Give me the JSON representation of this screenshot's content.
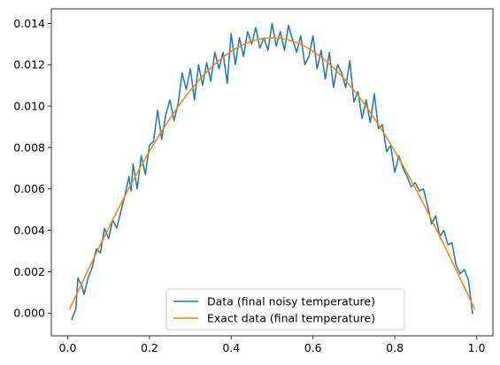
{
  "chart_data": {
    "type": "line",
    "title": "",
    "xlabel": "",
    "ylabel": "",
    "xlim": [
      -0.04,
      1.04
    ],
    "ylim": [
      -0.0011,
      0.0147
    ],
    "grid": false,
    "legend_placement": "lower center",
    "x_ticks": [
      {
        "value": 0.0,
        "label": "0.0"
      },
      {
        "value": 0.2,
        "label": "0.2"
      },
      {
        "value": 0.4,
        "label": "0.4"
      },
      {
        "value": 0.6,
        "label": "0.6"
      },
      {
        "value": 0.8,
        "label": "0.8"
      },
      {
        "value": 1.0,
        "label": "1.0"
      }
    ],
    "y_ticks": [
      {
        "value": 0.0,
        "label": "0.000"
      },
      {
        "value": 0.002,
        "label": "0.002"
      },
      {
        "value": 0.004,
        "label": "0.004"
      },
      {
        "value": 0.006,
        "label": "0.006"
      },
      {
        "value": 0.008,
        "label": "0.008"
      },
      {
        "value": 0.01,
        "label": "0.010"
      },
      {
        "value": 0.012,
        "label": "0.012"
      },
      {
        "value": 0.014,
        "label": "0.014"
      }
    ],
    "series": [
      {
        "name": "Data (final noisy temperature)",
        "color": "#1f77b4",
        "x": [
          0.01,
          0.02,
          0.025,
          0.035,
          0.04,
          0.05,
          0.06,
          0.07,
          0.08,
          0.09,
          0.1,
          0.11,
          0.12,
          0.13,
          0.14,
          0.15,
          0.155,
          0.16,
          0.17,
          0.18,
          0.19,
          0.2,
          0.21,
          0.22,
          0.23,
          0.24,
          0.25,
          0.26,
          0.27,
          0.28,
          0.29,
          0.3,
          0.31,
          0.32,
          0.33,
          0.34,
          0.35,
          0.36,
          0.37,
          0.38,
          0.39,
          0.4,
          0.41,
          0.42,
          0.43,
          0.44,
          0.45,
          0.46,
          0.47,
          0.48,
          0.49,
          0.5,
          0.51,
          0.52,
          0.53,
          0.54,
          0.55,
          0.56,
          0.57,
          0.58,
          0.59,
          0.6,
          0.61,
          0.62,
          0.63,
          0.64,
          0.65,
          0.66,
          0.67,
          0.68,
          0.69,
          0.7,
          0.71,
          0.72,
          0.73,
          0.74,
          0.75,
          0.76,
          0.77,
          0.78,
          0.79,
          0.8,
          0.81,
          0.82,
          0.83,
          0.84,
          0.85,
          0.86,
          0.87,
          0.88,
          0.89,
          0.9,
          0.91,
          0.92,
          0.93,
          0.94,
          0.95,
          0.96,
          0.97,
          0.98,
          0.99
        ],
        "y": [
          -0.0003,
          0.0002,
          0.0017,
          0.0013,
          0.0009,
          0.0017,
          0.0022,
          0.0031,
          0.0029,
          0.0041,
          0.0036,
          0.0045,
          0.0041,
          0.0049,
          0.0057,
          0.0066,
          0.0059,
          0.0072,
          0.006,
          0.0076,
          0.0067,
          0.0081,
          0.0083,
          0.0098,
          0.0084,
          0.0096,
          0.0103,
          0.0093,
          0.0101,
          0.0116,
          0.0108,
          0.0118,
          0.0103,
          0.012,
          0.011,
          0.0121,
          0.0112,
          0.0126,
          0.0118,
          0.0126,
          0.0111,
          0.0135,
          0.012,
          0.0133,
          0.0124,
          0.0136,
          0.013,
          0.0138,
          0.0128,
          0.0133,
          0.0127,
          0.014,
          0.0129,
          0.0136,
          0.0127,
          0.0139,
          0.0132,
          0.0126,
          0.0134,
          0.012,
          0.0124,
          0.0134,
          0.0118,
          0.0127,
          0.0113,
          0.0126,
          0.0109,
          0.012,
          0.0116,
          0.0109,
          0.0122,
          0.0102,
          0.0107,
          0.0094,
          0.0103,
          0.0092,
          0.0106,
          0.0089,
          0.0091,
          0.0078,
          0.0081,
          0.0068,
          0.0076,
          0.007,
          0.0066,
          0.0061,
          0.0063,
          0.0059,
          0.006,
          0.0052,
          0.0043,
          0.0047,
          0.0037,
          0.004,
          0.0033,
          0.0034,
          0.0023,
          0.0019,
          0.0021,
          0.0016,
          0.0
        ]
      },
      {
        "name": "Exact data (final temperature)",
        "color": "#ff7f0e",
        "function": "0.0133*sin(pi*x)",
        "x_start": 0.005,
        "x_end": 0.995,
        "samples": 100
      }
    ]
  }
}
